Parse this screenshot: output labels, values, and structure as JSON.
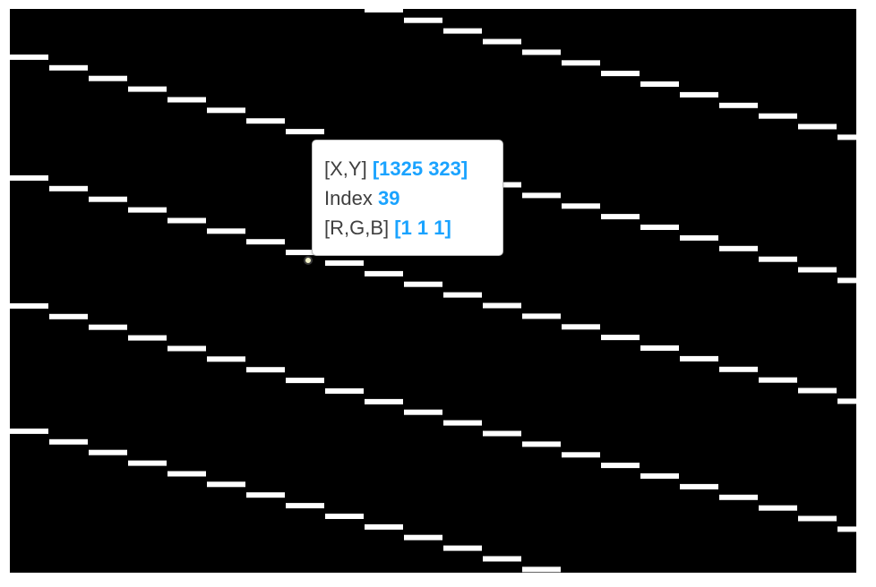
{
  "datatip": {
    "rows": [
      {
        "label": "[X,Y]",
        "value": "[1325 323]"
      },
      {
        "label": "Index",
        "value": "39"
      },
      {
        "label": "[R,G,B]",
        "value": "[1 1 1]"
      }
    ],
    "label_color": "#404040",
    "value_color": "#1aa3ff"
  },
  "colors": {
    "background": "#000000",
    "line": "#ffffff"
  }
}
